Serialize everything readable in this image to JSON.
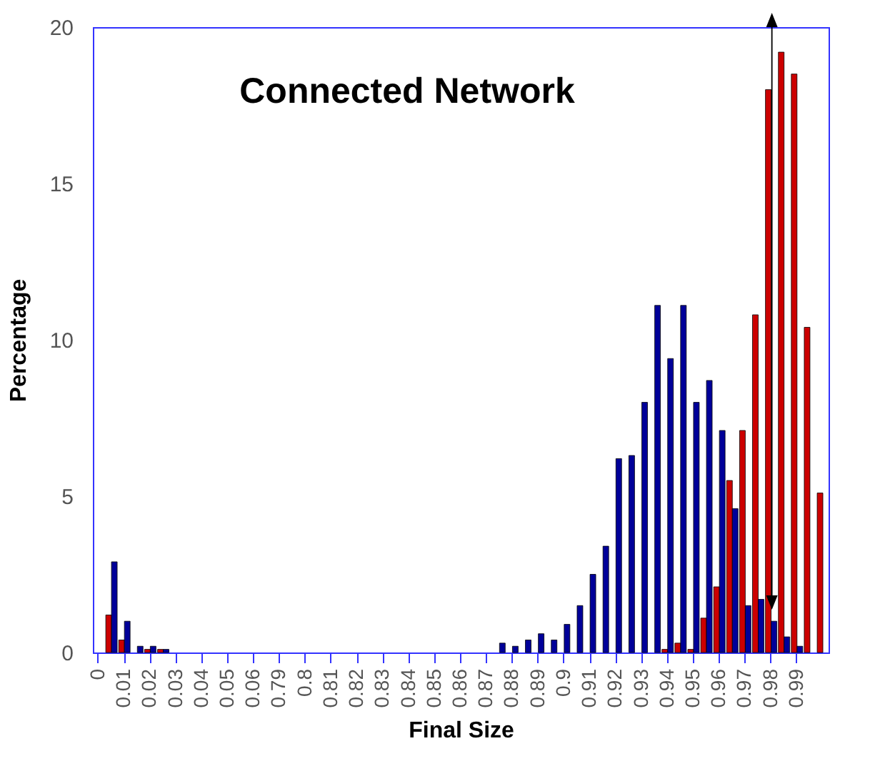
{
  "chart_data": {
    "type": "bar",
    "title": "Connected Network",
    "xlabel": "Final Size",
    "ylabel": "Percentage",
    "categories": [
      "0",
      null,
      "0.01",
      null,
      "0.02",
      null,
      "0.03",
      null,
      "0.04",
      null,
      "0.05",
      null,
      "0.06",
      null,
      "0.79",
      null,
      "0.8",
      null,
      "0.81",
      null,
      "0.82",
      null,
      "0.83",
      null,
      "0.84",
      null,
      "0.85",
      null,
      "0.86",
      null,
      "0.87",
      null,
      "0.88",
      null,
      "0.89",
      null,
      "0.9",
      null,
      "0.91",
      null,
      "0.92",
      null,
      "0.93",
      null,
      "0.94",
      null,
      "0.95",
      null,
      "0.96",
      null,
      "0.97",
      null,
      "0.98",
      null,
      "0.99",
      null,
      null
    ],
    "series": [
      {
        "color": "#cc0000",
        "values": [
          null,
          1.2,
          0.4,
          null,
          0.1,
          0.1,
          null,
          null,
          null,
          null,
          null,
          null,
          null,
          null,
          null,
          null,
          null,
          null,
          null,
          null,
          null,
          null,
          null,
          null,
          null,
          null,
          null,
          null,
          null,
          null,
          null,
          null,
          null,
          null,
          null,
          null,
          null,
          null,
          null,
          null,
          null,
          null,
          null,
          null,
          0.1,
          0.3,
          0.1,
          1.1,
          2.1,
          5.5,
          7.1,
          10.8,
          18.0,
          19.2,
          18.5,
          10.4,
          5.1
        ]
      },
      {
        "color": "#000099",
        "values": [
          null,
          2.9,
          1.0,
          0.2,
          0.2,
          0.1,
          null,
          null,
          null,
          null,
          null,
          null,
          null,
          null,
          null,
          null,
          null,
          null,
          null,
          null,
          null,
          null,
          null,
          null,
          null,
          null,
          null,
          null,
          null,
          null,
          null,
          0.3,
          0.2,
          0.4,
          0.6,
          0.4,
          0.9,
          1.5,
          2.5,
          3.4,
          6.2,
          6.3,
          8.0,
          11.1,
          9.4,
          11.1,
          8.0,
          8.7,
          7.1,
          4.6,
          1.5,
          1.7,
          1.0,
          0.5,
          0.2,
          null,
          null
        ]
      }
    ],
    "ylim": [
      0,
      20
    ],
    "yticks": [
      0,
      5,
      10,
      15,
      20
    ],
    "grid": false
  }
}
